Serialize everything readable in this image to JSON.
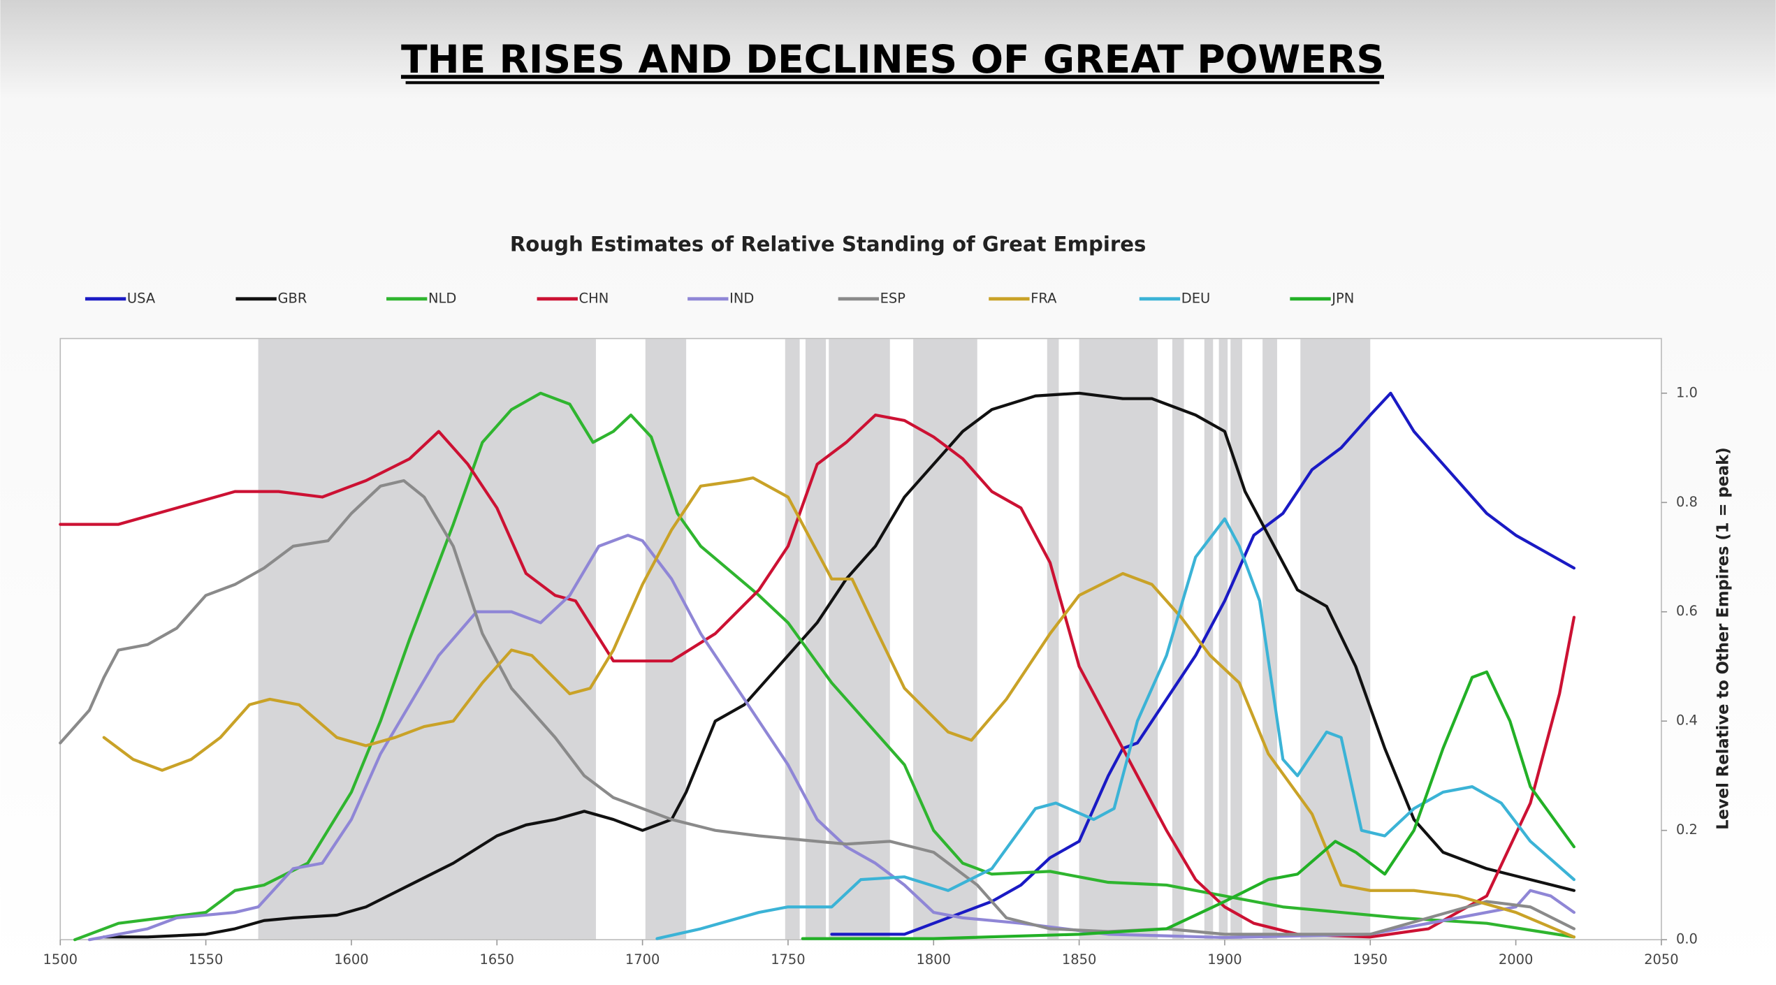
{
  "chart_data": {
    "type": "line",
    "title": "THE RISES AND DECLINES OF GREAT POWERS",
    "subtitle": "Rough Estimates of Relative Standing of Great Empires",
    "y_axis_label": "Level Relative to Other Empires (1 = peak)",
    "xlim": [
      1500,
      2050
    ],
    "xticks": [
      1500,
      1550,
      1600,
      1650,
      1700,
      1750,
      1800,
      1850,
      1900,
      1950,
      2000,
      2050
    ],
    "ylim": [
      0,
      1.1
    ],
    "yticks": [
      {
        "value": 0,
        "label": "0.0"
      },
      0.2,
      0.4,
      0.6,
      0.8,
      {
        "value": 1,
        "label": "1.0"
      }
    ],
    "y_axis_side": "right",
    "legend": "top",
    "shaded_periods": [
      [
        1568,
        1684
      ],
      [
        1701,
        1715
      ],
      [
        1749,
        1754
      ],
      [
        1756,
        1763
      ],
      [
        1764,
        1785
      ],
      [
        1793,
        1815
      ],
      [
        1839,
        1843
      ],
      [
        1850,
        1877
      ],
      [
        1882,
        1886
      ],
      [
        1893,
        1896
      ],
      [
        1898,
        1901
      ],
      [
        1902,
        1906
      ],
      [
        1913,
        1918
      ],
      [
        1926,
        1950
      ]
    ],
    "shade_color": "#d6d6d8",
    "series": [
      {
        "name": "USA",
        "color": "#1a1ac4",
        "x": [
          1765,
          1790,
          1800,
          1810,
          1820,
          1830,
          1840,
          1850,
          1860,
          1865,
          1870,
          1880,
          1890,
          1900,
          1910,
          1920,
          1930,
          1940,
          1950,
          1957,
          1965,
          1975,
          1990,
          2000,
          2010,
          2020
        ],
        "values": [
          0.01,
          0.01,
          0.03,
          0.05,
          0.07,
          0.1,
          0.15,
          0.18,
          0.3,
          0.35,
          0.36,
          0.44,
          0.52,
          0.62,
          0.74,
          0.78,
          0.86,
          0.9,
          0.96,
          1.0,
          0.93,
          0.87,
          0.78,
          0.74,
          0.71,
          0.68
        ]
      },
      {
        "name": "GBR",
        "color": "#111111",
        "x": [
          1515,
          1530,
          1550,
          1560,
          1570,
          1580,
          1595,
          1605,
          1620,
          1635,
          1650,
          1660,
          1670,
          1680,
          1690,
          1700,
          1710,
          1715,
          1725,
          1735,
          1750,
          1760,
          1770,
          1780,
          1790,
          1800,
          1810,
          1820,
          1835,
          1850,
          1865,
          1875,
          1890,
          1900,
          1907,
          1915,
          1925,
          1935,
          1945,
          1955,
          1965,
          1975,
          1990,
          2005,
          2020
        ],
        "values": [
          0.005,
          0.005,
          0.01,
          0.02,
          0.035,
          0.04,
          0.045,
          0.06,
          0.1,
          0.14,
          0.19,
          0.21,
          0.22,
          0.235,
          0.22,
          0.2,
          0.22,
          0.27,
          0.4,
          0.43,
          0.52,
          0.58,
          0.66,
          0.72,
          0.81,
          0.87,
          0.93,
          0.97,
          0.995,
          1.0,
          0.99,
          0.99,
          0.96,
          0.93,
          0.82,
          0.74,
          0.64,
          0.61,
          0.5,
          0.35,
          0.22,
          0.16,
          0.13,
          0.11,
          0.09
        ]
      },
      {
        "name": "NLD",
        "color": "#2fb52f",
        "x": [
          1505,
          1520,
          1535,
          1550,
          1560,
          1570,
          1585,
          1600,
          1610,
          1620,
          1635,
          1645,
          1655,
          1665,
          1675,
          1683,
          1690,
          1696,
          1703,
          1712,
          1720,
          1740,
          1750,
          1765,
          1780,
          1790,
          1800,
          1810,
          1820,
          1840,
          1860,
          1880,
          1900,
          1920,
          1940,
          1960,
          1990,
          2020
        ],
        "values": [
          0.0,
          0.03,
          0.04,
          0.05,
          0.09,
          0.1,
          0.14,
          0.27,
          0.4,
          0.55,
          0.76,
          0.91,
          0.97,
          1.0,
          0.98,
          0.91,
          0.93,
          0.96,
          0.92,
          0.78,
          0.72,
          0.63,
          0.58,
          0.47,
          0.38,
          0.32,
          0.2,
          0.14,
          0.12,
          0.125,
          0.105,
          0.1,
          0.08,
          0.06,
          0.05,
          0.04,
          0.03,
          0.005
        ]
      },
      {
        "name": "CHN",
        "color": "#cc1133",
        "x": [
          1500,
          1520,
          1540,
          1560,
          1575,
          1590,
          1605,
          1620,
          1630,
          1640,
          1650,
          1660,
          1670,
          1677,
          1690,
          1700,
          1710,
          1725,
          1740,
          1750,
          1760,
          1770,
          1780,
          1790,
          1800,
          1810,
          1820,
          1830,
          1840,
          1850,
          1865,
          1880,
          1890,
          1900,
          1910,
          1925,
          1950,
          1970,
          1990,
          2005,
          2015,
          2020
        ],
        "values": [
          0.76,
          0.76,
          0.79,
          0.82,
          0.82,
          0.81,
          0.84,
          0.88,
          0.93,
          0.87,
          0.79,
          0.67,
          0.63,
          0.62,
          0.51,
          0.51,
          0.51,
          0.56,
          0.64,
          0.72,
          0.87,
          0.91,
          0.96,
          0.95,
          0.92,
          0.88,
          0.82,
          0.79,
          0.69,
          0.5,
          0.35,
          0.2,
          0.11,
          0.06,
          0.03,
          0.01,
          0.005,
          0.02,
          0.08,
          0.25,
          0.45,
          0.59
        ]
      },
      {
        "name": "IND",
        "color": "#8f86d6",
        "x": [
          1510,
          1530,
          1540,
          1560,
          1568,
          1580,
          1590,
          1600,
          1610,
          1620,
          1630,
          1643,
          1655,
          1665,
          1675,
          1685,
          1695,
          1700,
          1710,
          1720,
          1730,
          1740,
          1750,
          1760,
          1770,
          1780,
          1790,
          1800,
          1810,
          1830,
          1860,
          1900,
          1950,
          1980,
          2000,
          2005,
          2012,
          2020
        ],
        "values": [
          0.0,
          0.02,
          0.04,
          0.05,
          0.06,
          0.13,
          0.14,
          0.22,
          0.34,
          0.43,
          0.52,
          0.6,
          0.6,
          0.58,
          0.63,
          0.72,
          0.74,
          0.73,
          0.66,
          0.56,
          0.48,
          0.4,
          0.32,
          0.22,
          0.17,
          0.14,
          0.1,
          0.05,
          0.04,
          0.03,
          0.01,
          0.004,
          0.01,
          0.04,
          0.06,
          0.09,
          0.08,
          0.05
        ]
      },
      {
        "name": "ESP",
        "color": "#8a8a8a",
        "x": [
          1500,
          1510,
          1515,
          1520,
          1530,
          1540,
          1550,
          1560,
          1570,
          1580,
          1592,
          1600,
          1610,
          1618,
          1625,
          1635,
          1645,
          1655,
          1670,
          1680,
          1690,
          1700,
          1710,
          1725,
          1740,
          1760,
          1770,
          1785,
          1800,
          1815,
          1825,
          1840,
          1860,
          1880,
          1900,
          1930,
          1950,
          1970,
          1990,
          2005,
          2020
        ],
        "values": [
          0.36,
          0.42,
          0.48,
          0.53,
          0.54,
          0.57,
          0.63,
          0.65,
          0.68,
          0.72,
          0.73,
          0.78,
          0.83,
          0.84,
          0.81,
          0.72,
          0.56,
          0.46,
          0.37,
          0.3,
          0.26,
          0.24,
          0.22,
          0.2,
          0.19,
          0.18,
          0.175,
          0.18,
          0.16,
          0.1,
          0.04,
          0.02,
          0.015,
          0.02,
          0.01,
          0.01,
          0.01,
          0.04,
          0.07,
          0.06,
          0.02
        ]
      },
      {
        "name": "FRA",
        "color": "#c9a227",
        "x": [
          1515,
          1525,
          1535,
          1545,
          1555,
          1565,
          1572,
          1582,
          1595,
          1605,
          1615,
          1625,
          1635,
          1645,
          1655,
          1662,
          1675,
          1682,
          1690,
          1700,
          1710,
          1720,
          1733,
          1738,
          1750,
          1758,
          1765,
          1772,
          1780,
          1790,
          1805,
          1813,
          1825,
          1840,
          1850,
          1865,
          1875,
          1885,
          1895,
          1905,
          1915,
          1930,
          1940,
          1950,
          1965,
          1980,
          2000,
          2020
        ],
        "values": [
          0.37,
          0.33,
          0.31,
          0.33,
          0.37,
          0.43,
          0.44,
          0.43,
          0.37,
          0.355,
          0.37,
          0.39,
          0.4,
          0.47,
          0.53,
          0.52,
          0.45,
          0.46,
          0.53,
          0.65,
          0.75,
          0.83,
          0.84,
          0.845,
          0.81,
          0.73,
          0.66,
          0.66,
          0.57,
          0.46,
          0.38,
          0.365,
          0.44,
          0.56,
          0.63,
          0.67,
          0.65,
          0.59,
          0.52,
          0.47,
          0.34,
          0.23,
          0.1,
          0.09,
          0.09,
          0.08,
          0.05,
          0.005
        ]
      },
      {
        "name": "DEU",
        "color": "#3bb3d6",
        "x": [
          1705,
          1720,
          1740,
          1750,
          1765,
          1775,
          1790,
          1805,
          1820,
          1835,
          1842,
          1855,
          1862,
          1870,
          1880,
          1890,
          1900,
          1905,
          1912,
          1920,
          1925,
          1935,
          1940,
          1947,
          1955,
          1965,
          1975,
          1985,
          1995,
          2005,
          2020
        ],
        "values": [
          0.002,
          0.02,
          0.05,
          0.06,
          0.06,
          0.11,
          0.115,
          0.09,
          0.13,
          0.24,
          0.25,
          0.22,
          0.24,
          0.4,
          0.52,
          0.7,
          0.77,
          0.72,
          0.62,
          0.33,
          0.3,
          0.38,
          0.37,
          0.2,
          0.19,
          0.24,
          0.27,
          0.28,
          0.25,
          0.18,
          0.11
        ]
      },
      {
        "name": "JPN",
        "color": "#22b026",
        "x": [
          1755,
          1800,
          1850,
          1880,
          1900,
          1915,
          1925,
          1938,
          1945,
          1955,
          1965,
          1975,
          1985,
          1990,
          1998,
          2005,
          2020
        ],
        "values": [
          0.002,
          0.002,
          0.01,
          0.02,
          0.07,
          0.11,
          0.12,
          0.18,
          0.16,
          0.12,
          0.2,
          0.35,
          0.48,
          0.49,
          0.4,
          0.28,
          0.17
        ]
      }
    ]
  }
}
